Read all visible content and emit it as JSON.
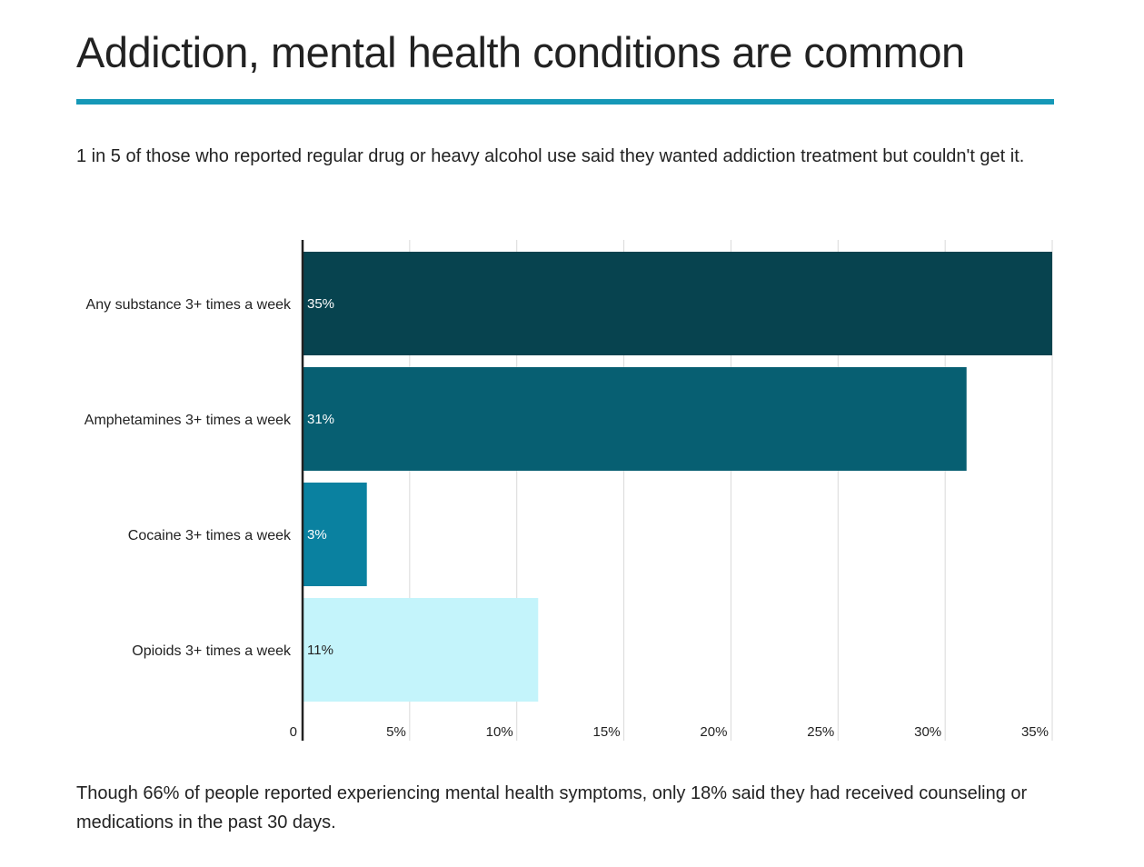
{
  "header": {
    "title": "Addiction, mental health conditions are common",
    "subtitle": "1 in 5 of those who reported regular drug or heavy alcohol use said they wanted addiction treatment but couldn't get it."
  },
  "footer": {
    "note": "Though 66% of people reported experiencing mental health symptoms, only 18% said they had received counseling or medications in the past 30 days."
  },
  "colors": {
    "accent_rule": "#1598b7",
    "axis": "#222222",
    "grid": "#d9d9d9"
  },
  "chart_data": {
    "type": "bar",
    "orientation": "horizontal",
    "categories": [
      "Any substance 3+ times a week",
      "Amphetamines 3+ times a week",
      "Cocaine 3+ times a week",
      "Opioids 3+ times a week"
    ],
    "values": [
      35,
      31,
      3,
      11
    ],
    "value_labels": [
      "35%",
      "31%",
      "3%",
      "11%"
    ],
    "bar_colors": [
      "#07434f",
      "#075f72",
      "#0a81a0",
      "#c4f4fb"
    ],
    "label_colors": [
      "#ffffff",
      "#ffffff",
      "#ffffff",
      "#222222"
    ],
    "xlim": [
      0,
      35
    ],
    "xticks": [
      0,
      5,
      10,
      15,
      20,
      25,
      30,
      35
    ],
    "xtick_labels": [
      "0",
      "5%",
      "10%",
      "15%",
      "20%",
      "25%",
      "30%",
      "35%"
    ],
    "grid": true,
    "legend": "none"
  }
}
